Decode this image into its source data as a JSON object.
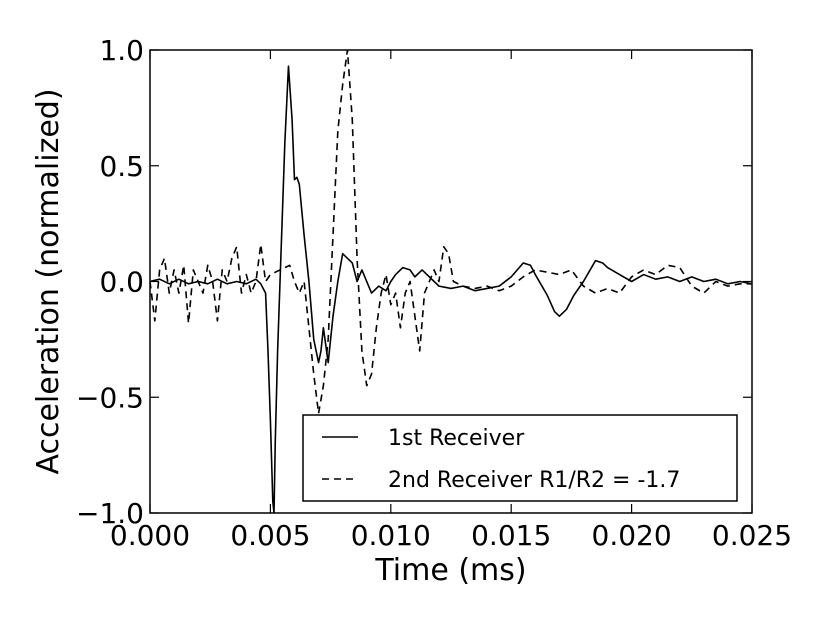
{
  "chart_data": {
    "type": "line",
    "title": "",
    "xlabel": "Time (ms)",
    "ylabel": "Acceleration (normalized)",
    "xlim": [
      0.0,
      0.025
    ],
    "ylim": [
      -1.0,
      1.0
    ],
    "grid": false,
    "legend_position": "bottom-right",
    "x_ticks": [
      0.0,
      0.005,
      0.01,
      0.015,
      0.02,
      0.025
    ],
    "x_tick_labels": [
      "0.000",
      "0.005",
      "0.010",
      "0.015",
      "0.020",
      "0.025"
    ],
    "y_ticks": [
      1.0,
      0.5,
      0.0,
      -0.5,
      -1.0
    ],
    "y_tick_labels": [
      "1.0",
      "0.5",
      "0.0",
      "−0.5",
      "−1.0"
    ],
    "series": [
      {
        "name": "1st Receiver",
        "line_style": "solid",
        "color": "#000000",
        "points": [
          [
            0.0,
            0.0
          ],
          [
            0.0004,
            0.01
          ],
          [
            0.0008,
            -0.01
          ],
          [
            0.0012,
            0.01
          ],
          [
            0.0016,
            -0.01
          ],
          [
            0.002,
            0.0
          ],
          [
            0.0024,
            -0.01
          ],
          [
            0.0028,
            0.01
          ],
          [
            0.0032,
            -0.01
          ],
          [
            0.0036,
            0.0
          ],
          [
            0.004,
            -0.01
          ],
          [
            0.0044,
            0.01
          ],
          [
            0.0046,
            -0.01
          ],
          [
            0.0048,
            -0.05
          ],
          [
            0.0049,
            -0.3
          ],
          [
            0.005,
            -0.6
          ],
          [
            0.0051,
            -0.95
          ],
          [
            0.00515,
            -1.0
          ],
          [
            0.0052,
            -0.7
          ],
          [
            0.0053,
            -0.3
          ],
          [
            0.0054,
            0.0
          ],
          [
            0.0055,
            0.3
          ],
          [
            0.0056,
            0.6
          ],
          [
            0.00575,
            0.93
          ],
          [
            0.0059,
            0.7
          ],
          [
            0.006,
            0.44
          ],
          [
            0.0061,
            0.45
          ],
          [
            0.0062,
            0.42
          ],
          [
            0.0064,
            0.2
          ],
          [
            0.0066,
            0.0
          ],
          [
            0.0068,
            -0.25
          ],
          [
            0.007,
            -0.35
          ],
          [
            0.0071,
            -0.3
          ],
          [
            0.0072,
            -0.2
          ],
          [
            0.0074,
            -0.35
          ],
          [
            0.0076,
            -0.15
          ],
          [
            0.0078,
            0.0
          ],
          [
            0.008,
            0.12
          ],
          [
            0.0082,
            0.1
          ],
          [
            0.0084,
            0.08
          ],
          [
            0.0086,
            0.0
          ],
          [
            0.0088,
            0.05
          ],
          [
            0.009,
            0.0
          ],
          [
            0.0092,
            -0.05
          ],
          [
            0.0095,
            -0.02
          ],
          [
            0.0098,
            -0.04
          ],
          [
            0.01,
            0.0
          ],
          [
            0.0102,
            0.03
          ],
          [
            0.0105,
            0.06
          ],
          [
            0.0108,
            0.05
          ],
          [
            0.011,
            0.02
          ],
          [
            0.0113,
            0.05
          ],
          [
            0.0115,
            0.03
          ],
          [
            0.012,
            -0.02
          ],
          [
            0.0125,
            -0.03
          ],
          [
            0.013,
            -0.02
          ],
          [
            0.0135,
            -0.04
          ],
          [
            0.014,
            -0.03
          ],
          [
            0.0145,
            -0.02
          ],
          [
            0.015,
            0.02
          ],
          [
            0.0155,
            0.08
          ],
          [
            0.0158,
            0.07
          ],
          [
            0.016,
            0.03
          ],
          [
            0.0165,
            -0.06
          ],
          [
            0.0168,
            -0.13
          ],
          [
            0.017,
            -0.15
          ],
          [
            0.0173,
            -0.12
          ],
          [
            0.0176,
            -0.06
          ],
          [
            0.018,
            0.0
          ],
          [
            0.0185,
            0.09
          ],
          [
            0.0188,
            0.08
          ],
          [
            0.019,
            0.06
          ],
          [
            0.0195,
            0.03
          ],
          [
            0.02,
            0.0
          ],
          [
            0.0205,
            0.03
          ],
          [
            0.021,
            0.01
          ],
          [
            0.0215,
            0.02
          ],
          [
            0.022,
            0.0
          ],
          [
            0.0225,
            0.02
          ],
          [
            0.023,
            0.0
          ],
          [
            0.0235,
            0.01
          ],
          [
            0.024,
            -0.01
          ],
          [
            0.0245,
            0.0
          ],
          [
            0.025,
            -0.01
          ]
        ]
      },
      {
        "name": "2nd Receiver R1/R2 = -1.7",
        "line_style": "dashed",
        "color": "#000000",
        "points": [
          [
            0.0,
            0.0
          ],
          [
            0.0002,
            -0.17
          ],
          [
            0.0004,
            0.05
          ],
          [
            0.0006,
            0.1
          ],
          [
            0.0008,
            -0.05
          ],
          [
            0.001,
            0.05
          ],
          [
            0.0012,
            -0.05
          ],
          [
            0.0014,
            0.07
          ],
          [
            0.0016,
            -0.18
          ],
          [
            0.0018,
            0.05
          ],
          [
            0.002,
            0.0
          ],
          [
            0.0022,
            -0.05
          ],
          [
            0.0024,
            0.07
          ],
          [
            0.0026,
            0.0
          ],
          [
            0.0028,
            -0.17
          ],
          [
            0.003,
            0.05
          ],
          [
            0.0032,
            0.0
          ],
          [
            0.0034,
            0.1
          ],
          [
            0.0036,
            0.15
          ],
          [
            0.0038,
            -0.05
          ],
          [
            0.004,
            0.03
          ],
          [
            0.0042,
            -0.05
          ],
          [
            0.0044,
            0.0
          ],
          [
            0.0046,
            0.16
          ],
          [
            0.0048,
            0.0
          ],
          [
            0.005,
            0.03
          ],
          [
            0.0054,
            0.05
          ],
          [
            0.0058,
            0.07
          ],
          [
            0.006,
            0.0
          ],
          [
            0.0062,
            -0.05
          ],
          [
            0.0064,
            0.0
          ],
          [
            0.0066,
            -0.2
          ],
          [
            0.0068,
            -0.4
          ],
          [
            0.007,
            -0.57
          ],
          [
            0.0072,
            -0.45
          ],
          [
            0.0074,
            -0.25
          ],
          [
            0.0076,
            0.2
          ],
          [
            0.0078,
            0.65
          ],
          [
            0.008,
            0.85
          ],
          [
            0.0082,
            1.0
          ],
          [
            0.0084,
            0.7
          ],
          [
            0.0086,
            0.1
          ],
          [
            0.0088,
            -0.3
          ],
          [
            0.009,
            -0.45
          ],
          [
            0.0092,
            -0.4
          ],
          [
            0.0094,
            -0.2
          ],
          [
            0.0096,
            -0.05
          ],
          [
            0.0098,
            0.03
          ],
          [
            0.01,
            -0.1
          ],
          [
            0.0102,
            -0.05
          ],
          [
            0.0104,
            -0.2
          ],
          [
            0.0106,
            -0.05
          ],
          [
            0.0108,
            0.0
          ],
          [
            0.011,
            -0.15
          ],
          [
            0.0112,
            -0.3
          ],
          [
            0.0114,
            -0.05
          ],
          [
            0.0116,
            0.0
          ],
          [
            0.0118,
            0.05
          ],
          [
            0.012,
            0.0
          ],
          [
            0.0122,
            0.15
          ],
          [
            0.0124,
            0.12
          ],
          [
            0.0126,
            0.0
          ],
          [
            0.013,
            -0.02
          ],
          [
            0.0135,
            -0.03
          ],
          [
            0.014,
            -0.02
          ],
          [
            0.0145,
            -0.04
          ],
          [
            0.015,
            -0.02
          ],
          [
            0.0155,
            0.02
          ],
          [
            0.016,
            0.05
          ],
          [
            0.0165,
            0.04
          ],
          [
            0.017,
            0.03
          ],
          [
            0.0175,
            0.05
          ],
          [
            0.018,
            -0.02
          ],
          [
            0.0185,
            -0.05
          ],
          [
            0.019,
            -0.03
          ],
          [
            0.0195,
            -0.05
          ],
          [
            0.02,
            0.02
          ],
          [
            0.0205,
            0.05
          ],
          [
            0.021,
            0.03
          ],
          [
            0.0215,
            0.07
          ],
          [
            0.022,
            0.06
          ],
          [
            0.0225,
            -0.02
          ],
          [
            0.023,
            -0.05
          ],
          [
            0.0235,
            0.0
          ],
          [
            0.024,
            -0.02
          ],
          [
            0.0245,
            -0.01
          ],
          [
            0.025,
            -0.01
          ]
        ]
      }
    ]
  }
}
